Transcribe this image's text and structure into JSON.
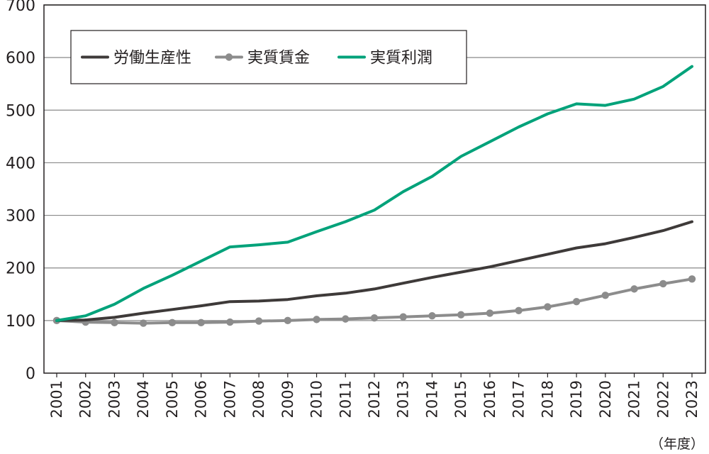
{
  "chart_data": {
    "type": "line",
    "x_unit_label": "（年度）",
    "x": [
      "2001",
      "2002",
      "2003",
      "2004",
      "2005",
      "2006",
      "2007",
      "2008",
      "2009",
      "2010",
      "2011",
      "2012",
      "2013",
      "2014",
      "2015",
      "2016",
      "2017",
      "2018",
      "2019",
      "2020",
      "2021",
      "2022",
      "2023"
    ],
    "ylim": [
      0,
      700
    ],
    "yticks": [
      "0",
      "100",
      "200",
      "300",
      "400",
      "500",
      "600",
      "700"
    ],
    "grid": true,
    "legend_position": "top-left",
    "series": [
      {
        "name": "労働生産性",
        "color": "#3e3a39",
        "markers": false,
        "values": [
          100,
          101,
          106,
          114,
          121,
          128,
          136,
          137,
          140,
          147,
          152,
          160,
          171,
          182,
          192,
          202,
          214,
          226,
          238,
          246,
          258,
          271,
          288
        ]
      },
      {
        "name": "実質賃金",
        "color": "#8c8c8c",
        "markers": true,
        "values": [
          100,
          97,
          96,
          95,
          96,
          96,
          97,
          99,
          100,
          102,
          103,
          105,
          107,
          109,
          111,
          114,
          119,
          126,
          136,
          148,
          160,
          170,
          179
        ]
      },
      {
        "name": "実質利潤",
        "color": "#00a27a",
        "markers": false,
        "values": [
          100,
          109,
          131,
          161,
          186,
          213,
          240,
          244,
          249,
          269,
          288,
          310,
          345,
          374,
          412,
          440,
          468,
          493,
          512,
          509,
          521,
          545,
          583
        ]
      }
    ]
  }
}
